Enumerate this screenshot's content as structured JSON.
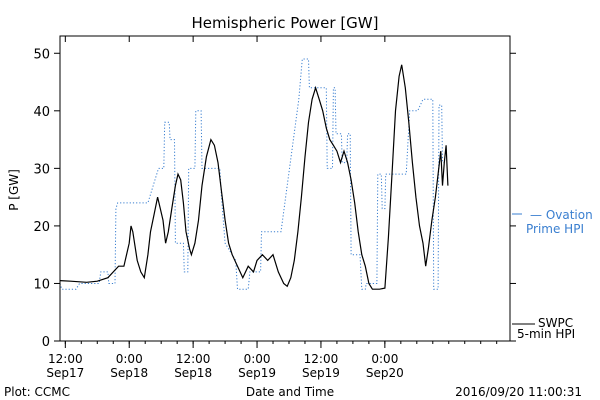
{
  "chart_data": {
    "type": "line",
    "title": "Hemispheric Power [GW]",
    "xlabel": "Date and Time",
    "ylabel": "P [GW]",
    "ylim": [
      0,
      53
    ],
    "x_unit": "hours",
    "xlim": [
      "2016-09-17 11:00",
      "2016-09-20 23:30"
    ],
    "y_ticks": [
      0,
      10,
      20,
      30,
      40,
      50
    ],
    "x_ticks": [
      {
        "x": "2016-09-17 12:00",
        "line1": "12:00",
        "line2": "Sep17"
      },
      {
        "x": "2016-09-18 00:00",
        "line1": "0:00",
        "line2": "Sep18"
      },
      {
        "x": "2016-09-18 12:00",
        "line1": "12:00",
        "line2": "Sep18"
      },
      {
        "x": "2016-09-19 00:00",
        "line1": "0:00",
        "line2": "Sep19"
      },
      {
        "x": "2016-09-19 12:00",
        "line1": "12:00",
        "line2": "Sep19"
      },
      {
        "x": "2016-09-20 00:00",
        "line1": "0:00",
        "line2": "Sep20"
      }
    ],
    "grid": false,
    "series": [
      {
        "name": "Ovation Prime HPI",
        "label_lines": [
          "— Ovation",
          "Prime HPI"
        ],
        "color": "#3a7fd0",
        "style": "dotted-step",
        "points": [
          [
            "2016-09-17 11:00",
            10
          ],
          [
            "2016-09-17 11:20",
            9
          ],
          [
            "2016-09-17 14:00",
            9
          ],
          [
            "2016-09-17 14:40",
            10
          ],
          [
            "2016-09-17 18:20",
            10
          ],
          [
            "2016-09-17 18:40",
            12
          ],
          [
            "2016-09-17 20:00",
            12
          ],
          [
            "2016-09-17 20:10",
            10
          ],
          [
            "2016-09-17 21:20",
            10
          ],
          [
            "2016-09-17 21:30",
            23
          ],
          [
            "2016-09-17 21:50",
            24
          ],
          [
            "2016-09-18 03:30",
            24
          ],
          [
            "2016-09-18 05:30",
            30
          ],
          [
            "2016-09-18 06:30",
            30
          ],
          [
            "2016-09-18 06:40",
            38
          ],
          [
            "2016-09-18 07:30",
            38
          ],
          [
            "2016-09-18 07:40",
            35
          ],
          [
            "2016-09-18 08:30",
            35
          ],
          [
            "2016-09-18 08:40",
            17
          ],
          [
            "2016-09-18 10:10",
            17
          ],
          [
            "2016-09-18 10:20",
            12
          ],
          [
            "2016-09-18 11:00",
            12
          ],
          [
            "2016-09-18 11:10",
            30
          ],
          [
            "2016-09-18 12:20",
            30
          ],
          [
            "2016-09-18 12:30",
            40
          ],
          [
            "2016-09-18 13:30",
            40
          ],
          [
            "2016-09-18 13:40",
            30
          ],
          [
            "2016-09-18 17:00",
            30
          ],
          [
            "2016-09-18 17:20",
            25
          ],
          [
            "2016-09-18 18:00",
            17
          ],
          [
            "2016-09-18 20:00",
            14
          ],
          [
            "2016-09-18 20:20",
            9
          ],
          [
            "2016-09-18 22:20",
            9
          ],
          [
            "2016-09-18 22:40",
            12
          ],
          [
            "2016-09-19 00:40",
            12
          ],
          [
            "2016-09-19 00:50",
            19
          ],
          [
            "2016-09-19 04:30",
            19
          ],
          [
            "2016-09-19 07:50",
            42
          ],
          [
            "2016-09-19 08:30",
            49
          ],
          [
            "2016-09-19 09:40",
            49
          ],
          [
            "2016-09-19 09:50",
            44
          ],
          [
            "2016-09-19 13:00",
            44
          ],
          [
            "2016-09-19 13:10",
            30
          ],
          [
            "2016-09-19 14:10",
            30
          ],
          [
            "2016-09-19 14:20",
            44
          ],
          [
            "2016-09-19 14:40",
            44
          ],
          [
            "2016-09-19 14:50",
            36
          ],
          [
            "2016-09-19 15:50",
            36
          ],
          [
            "2016-09-19 16:00",
            31
          ],
          [
            "2016-09-19 16:50",
            31
          ],
          [
            "2016-09-19 17:00",
            36
          ],
          [
            "2016-09-19 17:30",
            36
          ],
          [
            "2016-09-19 17:40",
            15
          ],
          [
            "2016-09-19 19:20",
            15
          ],
          [
            "2016-09-19 19:40",
            9
          ],
          [
            "2016-09-19 20:20",
            9
          ],
          [
            "2016-09-19 20:30",
            10
          ],
          [
            "2016-09-19 22:30",
            10
          ],
          [
            "2016-09-19 22:40",
            29
          ],
          [
            "2016-09-19 23:20",
            29
          ],
          [
            "2016-09-19 23:30",
            23
          ],
          [
            "2016-09-20 00:00",
            23
          ],
          [
            "2016-09-20 00:10",
            29
          ],
          [
            "2016-09-20 04:00",
            29
          ],
          [
            "2016-09-20 04:40",
            40
          ],
          [
            "2016-09-20 06:10",
            40
          ],
          [
            "2016-09-20 07:10",
            42
          ],
          [
            "2016-09-20 09:00",
            42
          ],
          [
            "2016-09-20 09:10",
            9
          ],
          [
            "2016-09-20 10:00",
            9
          ],
          [
            "2016-09-20 10:10",
            41
          ],
          [
            "2016-09-20 10:40",
            41
          ],
          [
            "2016-09-20 10:50",
            31
          ],
          [
            "2016-09-20 11:00",
            31
          ]
        ]
      },
      {
        "name": "SWPC 5-min HPI",
        "label_lines": [
          "SWPC",
          "5-min HPI"
        ],
        "color": "#000000",
        "style": "solid",
        "points": [
          [
            "2016-09-17 11:00",
            10.5
          ],
          [
            "2016-09-17 13:00",
            10.4
          ],
          [
            "2016-09-17 16:00",
            10.2
          ],
          [
            "2016-09-17 18:00",
            10.4
          ],
          [
            "2016-09-17 20:00",
            11
          ],
          [
            "2016-09-17 21:00",
            12
          ],
          [
            "2016-09-17 22:00",
            13
          ],
          [
            "2016-09-17 23:00",
            13
          ],
          [
            "2016-09-18 00:00",
            17
          ],
          [
            "2016-09-18 00:20",
            20
          ],
          [
            "2016-09-18 00:40",
            19
          ],
          [
            "2016-09-18 01:30",
            14
          ],
          [
            "2016-09-18 02:10",
            12
          ],
          [
            "2016-09-18 02:50",
            11
          ],
          [
            "2016-09-18 03:30",
            15
          ],
          [
            "2016-09-18 04:00",
            19
          ],
          [
            "2016-09-18 04:40",
            22
          ],
          [
            "2016-09-18 05:20",
            25
          ],
          [
            "2016-09-18 05:50",
            23
          ],
          [
            "2016-09-18 06:20",
            21
          ],
          [
            "2016-09-18 06:50",
            17
          ],
          [
            "2016-09-18 07:20",
            19
          ],
          [
            "2016-09-18 08:00",
            23
          ],
          [
            "2016-09-18 08:40",
            27
          ],
          [
            "2016-09-18 09:10",
            29
          ],
          [
            "2016-09-18 09:40",
            28
          ],
          [
            "2016-09-18 10:10",
            24
          ],
          [
            "2016-09-18 10:40",
            19
          ],
          [
            "2016-09-18 11:20",
            16
          ],
          [
            "2016-09-18 11:40",
            15
          ],
          [
            "2016-09-18 12:20",
            17
          ],
          [
            "2016-09-18 13:00",
            21
          ],
          [
            "2016-09-18 13:40",
            27
          ],
          [
            "2016-09-18 14:30",
            32
          ],
          [
            "2016-09-18 15:20",
            35
          ],
          [
            "2016-09-18 16:00",
            34
          ],
          [
            "2016-09-18 16:40",
            31
          ],
          [
            "2016-09-18 17:20",
            26
          ],
          [
            "2016-09-18 18:00",
            21
          ],
          [
            "2016-09-18 18:40",
            17
          ],
          [
            "2016-09-18 19:20",
            15
          ],
          [
            "2016-09-18 20:20",
            13
          ],
          [
            "2016-09-18 21:20",
            11
          ],
          [
            "2016-09-18 22:20",
            13
          ],
          [
            "2016-09-18 23:20",
            12
          ],
          [
            "2016-09-19 00:00",
            14
          ],
          [
            "2016-09-19 01:00",
            15
          ],
          [
            "2016-09-19 02:00",
            14
          ],
          [
            "2016-09-19 03:00",
            15
          ],
          [
            "2016-09-19 04:00",
            12
          ],
          [
            "2016-09-19 05:00",
            10
          ],
          [
            "2016-09-19 05:40",
            9.5
          ],
          [
            "2016-09-19 06:20",
            11
          ],
          [
            "2016-09-19 07:00",
            14
          ],
          [
            "2016-09-19 07:40",
            19
          ],
          [
            "2016-09-19 08:20",
            25
          ],
          [
            "2016-09-19 09:00",
            32
          ],
          [
            "2016-09-19 09:40",
            38
          ],
          [
            "2016-09-19 10:20",
            42
          ],
          [
            "2016-09-19 11:00",
            44
          ],
          [
            "2016-09-19 11:40",
            42
          ],
          [
            "2016-09-19 12:20",
            40
          ],
          [
            "2016-09-19 13:00",
            37
          ],
          [
            "2016-09-19 13:40",
            35
          ],
          [
            "2016-09-19 14:20",
            34
          ],
          [
            "2016-09-19 15:00",
            33
          ],
          [
            "2016-09-19 15:40",
            31
          ],
          [
            "2016-09-19 16:20",
            33
          ],
          [
            "2016-09-19 17:00",
            31
          ],
          [
            "2016-09-19 17:40",
            28
          ],
          [
            "2016-09-19 18:20",
            24
          ],
          [
            "2016-09-19 19:00",
            19
          ],
          [
            "2016-09-19 19:40",
            15
          ],
          [
            "2016-09-19 20:20",
            13
          ],
          [
            "2016-09-19 21:00",
            10
          ],
          [
            "2016-09-19 21:40",
            9
          ],
          [
            "2016-09-19 23:00",
            9
          ],
          [
            "2016-09-20 00:00",
            9.2
          ],
          [
            "2016-09-20 00:40",
            18
          ],
          [
            "2016-09-20 01:20",
            29
          ],
          [
            "2016-09-20 02:00",
            40
          ],
          [
            "2016-09-20 02:40",
            46
          ],
          [
            "2016-09-20 03:10",
            48
          ],
          [
            "2016-09-20 03:50",
            44
          ],
          [
            "2016-09-20 04:30",
            38
          ],
          [
            "2016-09-20 05:10",
            31
          ],
          [
            "2016-09-20 05:50",
            25
          ],
          [
            "2016-09-20 06:30",
            20
          ],
          [
            "2016-09-20 07:10",
            17
          ],
          [
            "2016-09-20 07:40",
            13
          ],
          [
            "2016-09-20 08:10",
            16
          ],
          [
            "2016-09-20 08:50",
            21
          ],
          [
            "2016-09-20 09:30",
            25
          ],
          [
            "2016-09-20 10:00",
            29
          ],
          [
            "2016-09-20 10:30",
            33
          ],
          [
            "2016-09-20 10:50",
            27
          ],
          [
            "2016-09-20 11:10",
            31
          ],
          [
            "2016-09-20 11:30",
            34
          ],
          [
            "2016-09-20 11:50",
            27
          ]
        ]
      }
    ]
  },
  "footer": {
    "plot_credit": "Plot: CCMC",
    "timestamp": "2016/09/20 11:00:31"
  }
}
